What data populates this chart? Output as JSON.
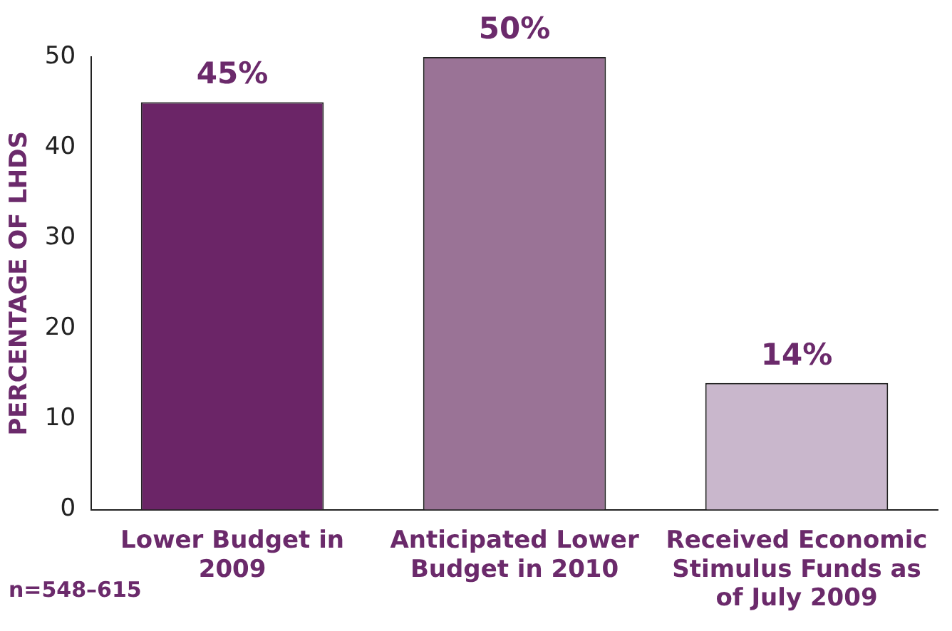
{
  "chart_data": {
    "type": "bar",
    "ylabel": "PERCENTAGE OF LHDS",
    "categories": [
      "Lower Budget in 2009",
      "Anticipated Lower Budget in 2010",
      "Received Economic Stimulus Funds as of July 2009"
    ],
    "values": [
      45,
      50,
      14
    ],
    "colors": [
      "#6b2567",
      "#9a7396",
      "#c9b7cc"
    ],
    "value_labels": [
      "45%",
      "50%",
      "14%"
    ],
    "ylim": [
      0,
      50
    ],
    "yticks": [
      0,
      10,
      20,
      30,
      40,
      50
    ],
    "grid": false,
    "legend": false,
    "annotations": [
      "n=548–615"
    ]
  }
}
